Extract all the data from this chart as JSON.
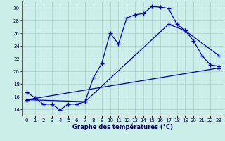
{
  "title": "Graphe des températures (°C)",
  "background_color": "#cceee8",
  "grid_color": "#aacccc",
  "line_color": "#0000bb",
  "xlim": [
    -0.5,
    23.5
  ],
  "ylim": [
    13.0,
    31.0
  ],
  "xticks": [
    0,
    1,
    2,
    3,
    4,
    5,
    6,
    7,
    8,
    9,
    10,
    11,
    12,
    13,
    14,
    15,
    16,
    17,
    18,
    19,
    20,
    21,
    22,
    23
  ],
  "yticks": [
    14,
    16,
    18,
    20,
    22,
    24,
    26,
    28,
    30
  ],
  "line1_x": [
    0,
    1,
    2,
    3,
    4,
    5,
    6,
    7,
    8,
    9,
    10,
    11,
    12,
    13,
    14,
    15,
    16,
    17,
    18,
    19,
    20,
    21,
    22,
    23
  ],
  "line1_y": [
    16.7,
    15.8,
    14.8,
    14.8,
    13.9,
    14.8,
    14.8,
    15.2,
    19.0,
    21.2,
    26.0,
    24.3,
    28.4,
    28.9,
    29.1,
    30.2,
    30.1,
    29.9,
    27.4,
    26.4,
    24.8,
    22.5,
    21.0,
    20.8
  ],
  "line2_x": [
    0,
    23
  ],
  "line2_y": [
    15.5,
    20.5
  ],
  "line3_x": [
    0,
    7,
    17,
    19,
    23
  ],
  "line3_y": [
    15.5,
    15.2,
    27.4,
    26.4,
    22.5
  ],
  "marker": "+",
  "markersize": 4,
  "linewidth": 0.9,
  "tick_fontsize": 5.0,
  "xlabel_fontsize": 6.0
}
